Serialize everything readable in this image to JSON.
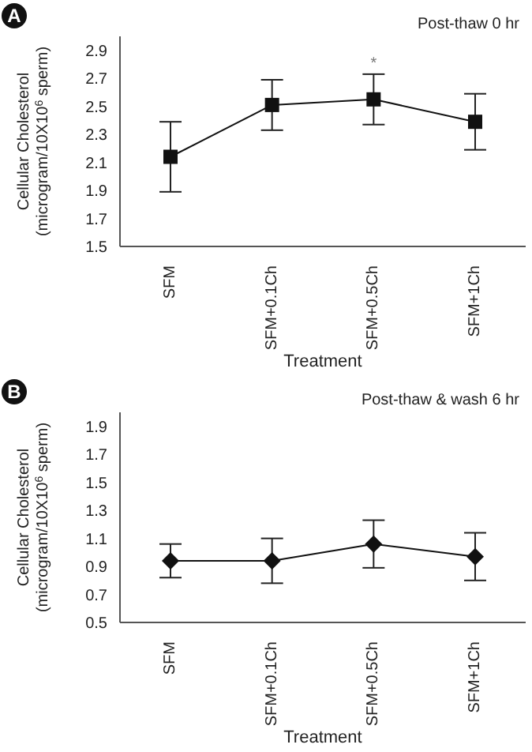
{
  "chart_data": [
    {
      "type": "line",
      "title": "Post-thaw 0 hr",
      "xlabel": "Treatment",
      "ylabel": "Cellular Cholesterol (microgram/10X10$^{6}$ sperm)",
      "categories": [
        "SFM",
        "SFM+0.1Ch",
        "SFM+0.5Ch",
        "SFM+1Ch"
      ],
      "series": [
        {
          "color": "#111111",
          "values": [
            2.14,
            2.51,
            2.55,
            2.39
          ],
          "errors": [
            0.25,
            0.18,
            0.18,
            0.2
          ]
        }
      ],
      "ylim": [
        1.5,
        3.0
      ],
      "yticks": [
        1.5,
        1.7,
        1.9,
        2.1,
        2.3,
        2.5,
        2.7,
        2.9
      ],
      "marker": "square",
      "line_style": "solid",
      "grid": false,
      "legend": false,
      "annotations": [
        "A",
        {
          "text": "*",
          "x": "SFM+0.5Ch",
          "y": 2.73
        }
      ]
    },
    {
      "type": "line",
      "title": "Post-thaw & wash 6 hr",
      "xlabel": "Treatment",
      "ylabel": "Cellular Cholesterol (microgram/10X10$^{6}$ sperm)",
      "categories": [
        "SFM",
        "SFM+0.1Ch",
        "SFM+0.5Ch",
        "SFM+1Ch"
      ],
      "series": [
        {
          "color": "#111111",
          "values": [
            0.94,
            0.94,
            1.06,
            0.97
          ],
          "errors": [
            0.12,
            0.16,
            0.17,
            0.17
          ]
        }
      ],
      "ylim": [
        0.5,
        2.0
      ],
      "yticks": [
        0.5,
        0.7,
        0.9,
        1.1,
        1.3,
        1.5,
        1.7,
        1.9
      ],
      "marker": "diamond",
      "line_style": "solid",
      "grid": false,
      "legend": false,
      "annotations": [
        "B"
      ]
    }
  ]
}
